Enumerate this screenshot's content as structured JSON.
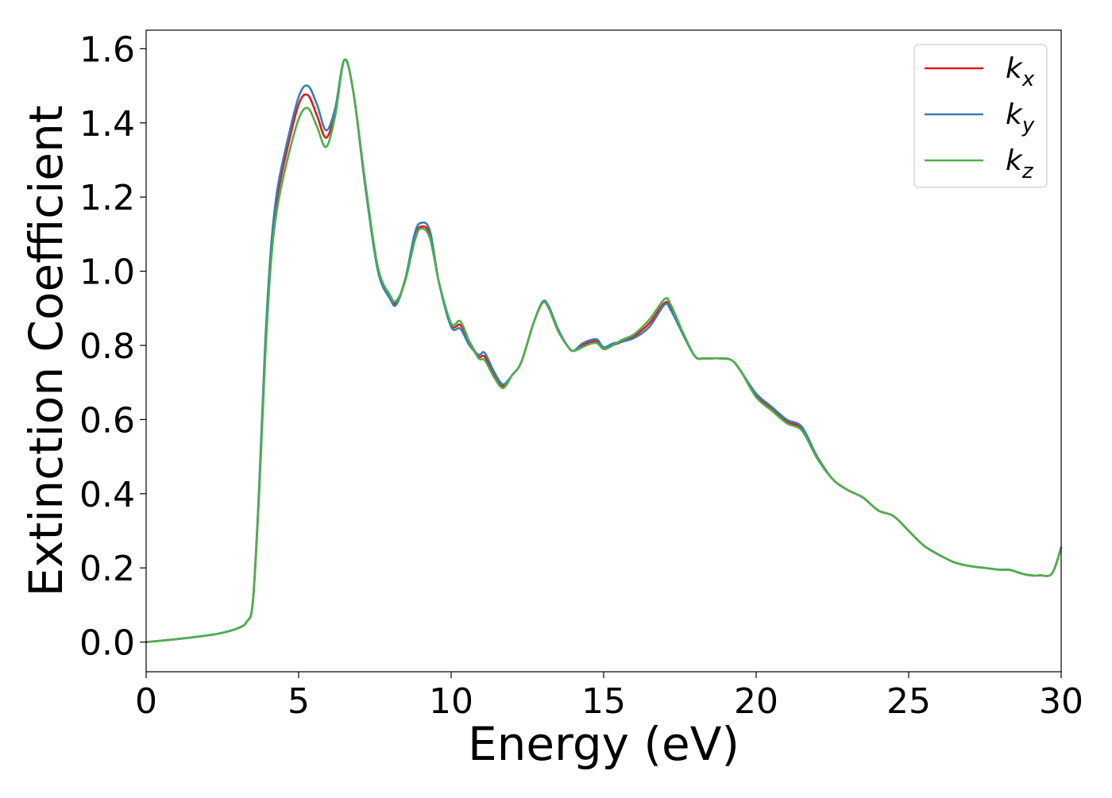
{
  "chart_data": {
    "type": "line",
    "title": "",
    "xlabel": "Energy (eV)",
    "ylabel": "Extinction Coefficient",
    "xlim": [
      0,
      30
    ],
    "ylim": [
      -0.08,
      1.65
    ],
    "xticks": [
      0,
      5,
      10,
      15,
      20,
      25,
      30
    ],
    "xtick_labels": [
      "0",
      "5",
      "10",
      "15",
      "20",
      "25",
      "30"
    ],
    "yticks": [
      0.0,
      0.2,
      0.4,
      0.6,
      0.8,
      1.0,
      1.2,
      1.4,
      1.6
    ],
    "ytick_labels": [
      "0.0",
      "0.2",
      "0.4",
      "0.6",
      "0.8",
      "1.0",
      "1.2",
      "1.4",
      "1.6"
    ],
    "grid": false,
    "legend_position": "top-right",
    "x": [
      0,
      1,
      2,
      2.5,
      3,
      3.3,
      3.5,
      3.7,
      3.9,
      4.1,
      4.3,
      4.6,
      5.0,
      5.3,
      5.6,
      5.9,
      6.2,
      6.5,
      6.8,
      7.2,
      7.6,
      8.0,
      8.2,
      8.5,
      8.8,
      9.0,
      9.3,
      9.6,
      10.0,
      10.3,
      10.6,
      10.9,
      11.1,
      11.4,
      11.7,
      12.0,
      12.3,
      12.7,
      13.0,
      13.2,
      13.5,
      13.8,
      14.0,
      14.3,
      14.6,
      14.8,
      15.0,
      15.3,
      15.6,
      16.0,
      16.5,
      17.0,
      17.2,
      17.6,
      18.0,
      18.3,
      18.8,
      19.2,
      19.5,
      20.0,
      20.5,
      21.0,
      21.5,
      22.0,
      22.5,
      23.0,
      23.5,
      24.0,
      24.5,
      25.0,
      25.5,
      26.0,
      26.5,
      27.0,
      27.5,
      28.0,
      28.3,
      28.7,
      29.0,
      29.3,
      29.7,
      30.0
    ],
    "series": [
      {
        "name": "k_x",
        "legend_label": "k",
        "legend_sub": "x",
        "color": "#e41a1c",
        "values": [
          0.0,
          0.008,
          0.018,
          0.025,
          0.037,
          0.055,
          0.11,
          0.4,
          0.78,
          1.05,
          1.2,
          1.32,
          1.45,
          1.475,
          1.42,
          1.36,
          1.43,
          1.57,
          1.48,
          1.22,
          1.01,
          0.93,
          0.915,
          0.98,
          1.09,
          1.12,
          1.1,
          0.97,
          0.855,
          0.855,
          0.81,
          0.77,
          0.77,
          0.72,
          0.69,
          0.72,
          0.755,
          0.86,
          0.915,
          0.9,
          0.84,
          0.8,
          0.785,
          0.8,
          0.81,
          0.81,
          0.79,
          0.8,
          0.81,
          0.825,
          0.86,
          0.915,
          0.9,
          0.83,
          0.77,
          0.765,
          0.765,
          0.76,
          0.73,
          0.665,
          0.63,
          0.595,
          0.575,
          0.5,
          0.44,
          0.41,
          0.39,
          0.355,
          0.34,
          0.3,
          0.26,
          0.235,
          0.215,
          0.205,
          0.2,
          0.195,
          0.195,
          0.185,
          0.18,
          0.18,
          0.185,
          0.255
        ]
      },
      {
        "name": "k_y",
        "legend_label": "k",
        "legend_sub": "y",
        "color": "#377eb8",
        "values": [
          0.0,
          0.008,
          0.018,
          0.025,
          0.037,
          0.055,
          0.11,
          0.41,
          0.8,
          1.07,
          1.22,
          1.34,
          1.47,
          1.5,
          1.45,
          1.38,
          1.44,
          1.57,
          1.48,
          1.22,
          1.0,
          0.925,
          0.91,
          0.98,
          1.1,
          1.13,
          1.11,
          0.97,
          0.85,
          0.845,
          0.8,
          0.775,
          0.78,
          0.73,
          0.695,
          0.72,
          0.755,
          0.86,
          0.918,
          0.905,
          0.845,
          0.8,
          0.785,
          0.805,
          0.815,
          0.815,
          0.795,
          0.805,
          0.81,
          0.82,
          0.85,
          0.91,
          0.895,
          0.83,
          0.77,
          0.765,
          0.765,
          0.76,
          0.73,
          0.67,
          0.635,
          0.6,
          0.58,
          0.5,
          0.44,
          0.41,
          0.39,
          0.355,
          0.34,
          0.3,
          0.26,
          0.235,
          0.215,
          0.205,
          0.2,
          0.195,
          0.195,
          0.185,
          0.18,
          0.18,
          0.185,
          0.255
        ]
      },
      {
        "name": "k_z",
        "legend_label": "k",
        "legend_sub": "z",
        "color": "#4daf4a",
        "values": [
          0.0,
          0.008,
          0.018,
          0.025,
          0.037,
          0.055,
          0.11,
          0.39,
          0.76,
          1.03,
          1.17,
          1.29,
          1.41,
          1.44,
          1.39,
          1.335,
          1.42,
          1.57,
          1.48,
          1.23,
          1.01,
          0.935,
          0.92,
          0.975,
          1.08,
          1.115,
          1.09,
          0.97,
          0.86,
          0.865,
          0.81,
          0.765,
          0.76,
          0.715,
          0.685,
          0.72,
          0.755,
          0.86,
          0.915,
          0.9,
          0.84,
          0.8,
          0.785,
          0.795,
          0.805,
          0.805,
          0.79,
          0.8,
          0.815,
          0.83,
          0.87,
          0.925,
          0.91,
          0.835,
          0.77,
          0.765,
          0.765,
          0.76,
          0.73,
          0.66,
          0.625,
          0.59,
          0.57,
          0.495,
          0.44,
          0.41,
          0.39,
          0.355,
          0.34,
          0.3,
          0.26,
          0.235,
          0.215,
          0.205,
          0.2,
          0.195,
          0.195,
          0.185,
          0.18,
          0.18,
          0.185,
          0.255
        ]
      }
    ]
  }
}
